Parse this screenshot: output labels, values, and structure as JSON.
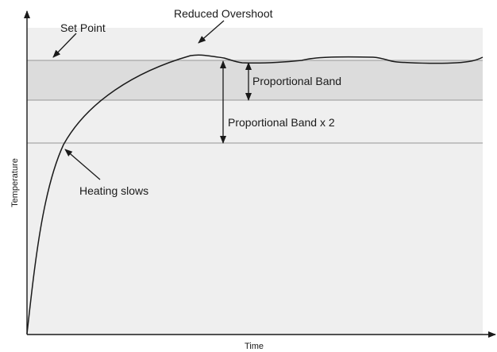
{
  "diagram": {
    "annotations": {
      "set_point": "Set Point",
      "reduced_overshoot": "Reduced Overshoot",
      "proportional_band": "Proportional Band",
      "proportional_band_x2": "Proportional Band x 2",
      "heating_slows": "Heating slows"
    },
    "axes": {
      "y_label": "Temperature",
      "x_label": "Time"
    },
    "colors": {
      "plot_background": "#efefef",
      "proportional_band_fill": "#dcdcdc",
      "reference_lines": "#a6a6a6",
      "curve": "#1a1a1a"
    }
  }
}
